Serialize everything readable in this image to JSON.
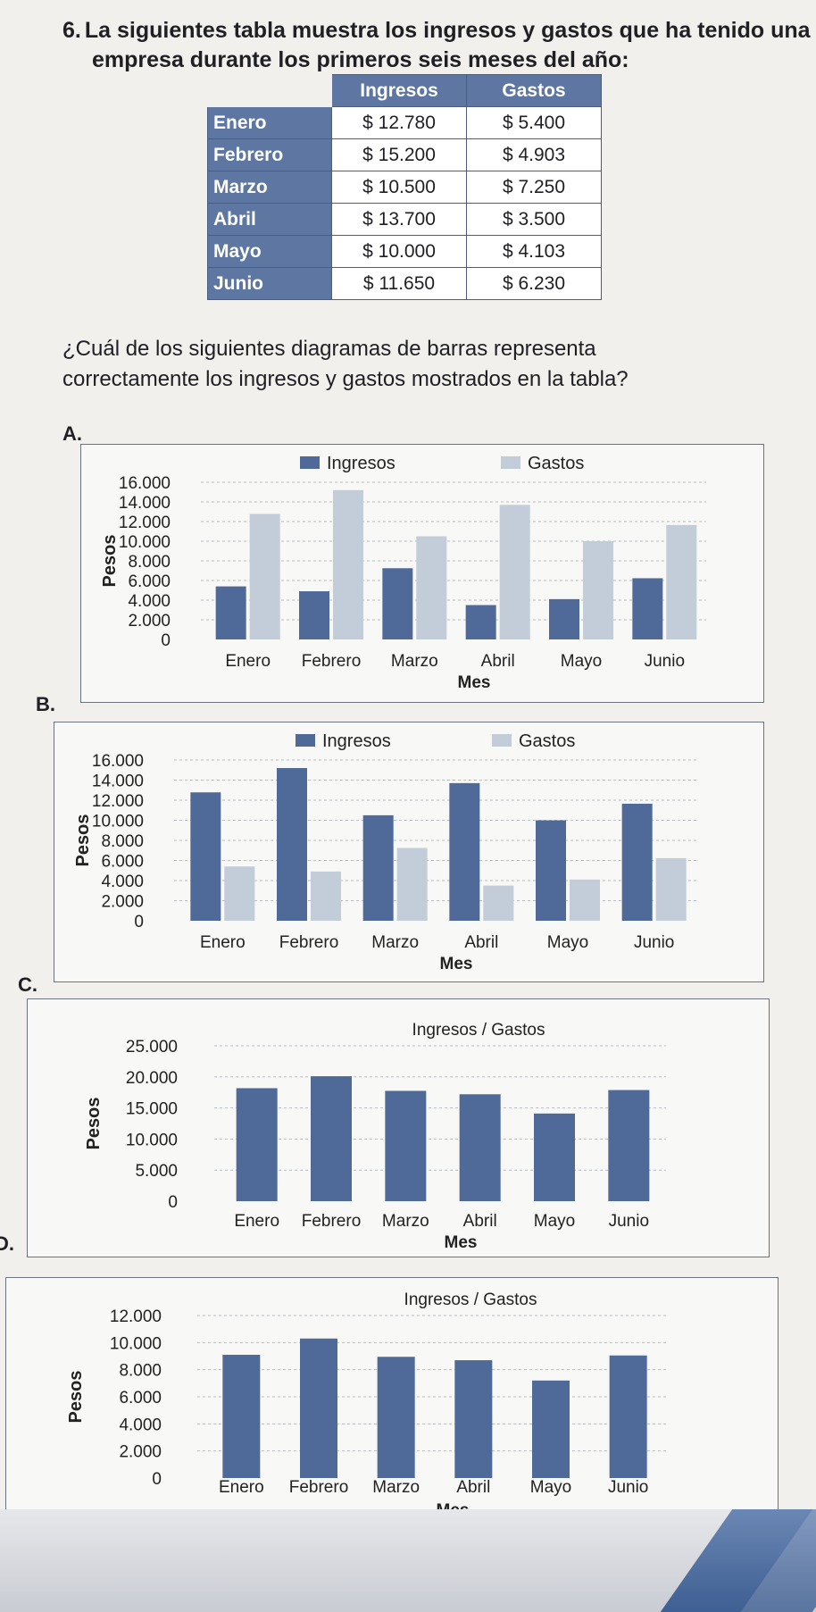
{
  "question": {
    "number": "6.",
    "text_line1": "La siguientes tabla muestra los ingresos y gastos que ha tenido una",
    "text_line2": "empresa durante los primeros seis meses del año:",
    "prompt_line1": "¿Cuál de los siguientes diagramas de barras representa",
    "prompt_line2": "correctamente los ingresos y gastos mostrados en la tabla?"
  },
  "table": {
    "headers": [
      "",
      "Ingresos",
      "Gastos"
    ],
    "rows": [
      {
        "mes": "Enero",
        "ingresos": "$ 12.780",
        "gastos": "$ 5.400"
      },
      {
        "mes": "Febrero",
        "ingresos": "$ 15.200",
        "gastos": "$ 4.903"
      },
      {
        "mes": "Marzo",
        "ingresos": "$ 10.500",
        "gastos": "$ 7.250"
      },
      {
        "mes": "Abril",
        "ingresos": "$ 13.700",
        "gastos": "$ 3.500"
      },
      {
        "mes": "Mayo",
        "ingresos": "$ 10.000",
        "gastos": "$ 4.103"
      },
      {
        "mes": "Junio",
        "ingresos": "$ 11.650",
        "gastos": "$ 6.230"
      }
    ]
  },
  "options": [
    "A.",
    "B.",
    "C.",
    "D."
  ],
  "colors": {
    "ingresos": "#4f6a98",
    "gastos": "#c3ccd9",
    "panel_border": "#6d7380"
  },
  "chart_data": [
    {
      "option": "A.",
      "type": "bar",
      "categories": [
        "Enero",
        "Febrero",
        "Marzo",
        "Abril",
        "Mayo",
        "Junio"
      ],
      "series": [
        {
          "name": "Ingresos",
          "values": [
            5400,
            4903,
            7250,
            3500,
            4103,
            6230
          ]
        },
        {
          "name": "Gastos",
          "values": [
            12780,
            15200,
            10500,
            13700,
            10000,
            11650
          ]
        }
      ],
      "yticks": [
        "16.000",
        "14.000",
        "12.000",
        "10.000",
        "8.000",
        "6.000",
        "4.000",
        "2.000",
        "0"
      ],
      "ylim": [
        0,
        16000
      ],
      "xlabel": "Mes",
      "ylabel": "Pesos",
      "legend": "top"
    },
    {
      "option": "B.",
      "type": "bar",
      "categories": [
        "Enero",
        "Febrero",
        "Marzo",
        "Abril",
        "Mayo",
        "Junio"
      ],
      "series": [
        {
          "name": "Ingresos",
          "values": [
            12780,
            15200,
            10500,
            13700,
            10000,
            11650
          ]
        },
        {
          "name": "Gastos",
          "values": [
            5400,
            4903,
            7250,
            3500,
            4103,
            6230
          ]
        }
      ],
      "yticks": [
        "16.000",
        "14.000",
        "12.000",
        "10.000",
        "8.000",
        "6.000",
        "4.000",
        "2.000",
        "0"
      ],
      "ylim": [
        0,
        16000
      ],
      "xlabel": "Mes",
      "ylabel": "Pesos",
      "legend": "top"
    },
    {
      "option": "C.",
      "type": "bar",
      "title": "Ingresos / Gastos",
      "categories": [
        "Enero",
        "Febrero",
        "Marzo",
        "Abril",
        "Mayo",
        "Junio"
      ],
      "series": [
        {
          "values": [
            18180,
            20103,
            17750,
            17200,
            14103,
            17880
          ]
        }
      ],
      "yticks": [
        "25.000",
        "20.000",
        "15.000",
        "10.000",
        "5.000",
        "0"
      ],
      "ylim": [
        0,
        25000
      ],
      "xlabel": "Mes",
      "ylabel": "Pesos"
    },
    {
      "option": "D.",
      "type": "bar",
      "title": "Ingresos / Gastos",
      "categories": [
        "Enero",
        "Febrero",
        "Marzo",
        "Abril",
        "Mayo",
        "Junio"
      ],
      "series": [
        {
          "values": [
            9100,
            10300,
            8950,
            8700,
            7200,
            9050
          ]
        }
      ],
      "yticks": [
        "12.000",
        "10.000",
        "8.000",
        "6.000",
        "4.000",
        "2.000",
        "0"
      ],
      "ylim": [
        0,
        12000
      ],
      "xlabel": "Mes",
      "ylabel": "Pesos"
    }
  ]
}
